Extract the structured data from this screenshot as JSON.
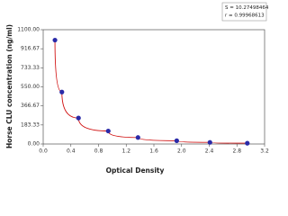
{
  "chart_data": {
    "type": "scatter",
    "x_label": "Optical Density",
    "y_label": "Horse CLU concentration (ng/ml)",
    "annotations": [
      "S = 10.27498464",
      "r = 0.99968613"
    ],
    "x": [
      0.17,
      0.27,
      0.51,
      0.94,
      1.37,
      1.93,
      2.41,
      2.95
    ],
    "values": [
      1000,
      500,
      250,
      125,
      62.5,
      31.25,
      15.6,
      7.8
    ],
    "marker_color": "#2a2aa8",
    "curve_color": "#d01010",
    "xlim": [
      0,
      3.2
    ],
    "ylim": [
      0,
      1100
    ],
    "xticks": [
      {
        "value": 0,
        "label": "0.0"
      },
      {
        "value": 0.4,
        "label": "0.4"
      },
      {
        "value": 0.8,
        "label": "0.8"
      },
      {
        "value": 1.2,
        "label": "1.2"
      },
      {
        "value": 1.6,
        "label": "1.6"
      },
      {
        "value": 2,
        "label": "2.0"
      },
      {
        "value": 2.4,
        "label": "2.4"
      },
      {
        "value": 2.8,
        "label": "2.8"
      },
      {
        "value": 3.2,
        "label": "3.2"
      }
    ],
    "yticks": [
      {
        "value": 0,
        "label": "0.00"
      },
      {
        "value": 183.33,
        "label": "183.33"
      },
      {
        "value": 366.67,
        "label": "366.67"
      },
      {
        "value": 550,
        "label": "550.00"
      },
      {
        "value": 733.33,
        "label": "733.33"
      },
      {
        "value": 916.67,
        "label": "916.67"
      },
      {
        "value": 1100,
        "label": "1100.00"
      }
    ]
  }
}
